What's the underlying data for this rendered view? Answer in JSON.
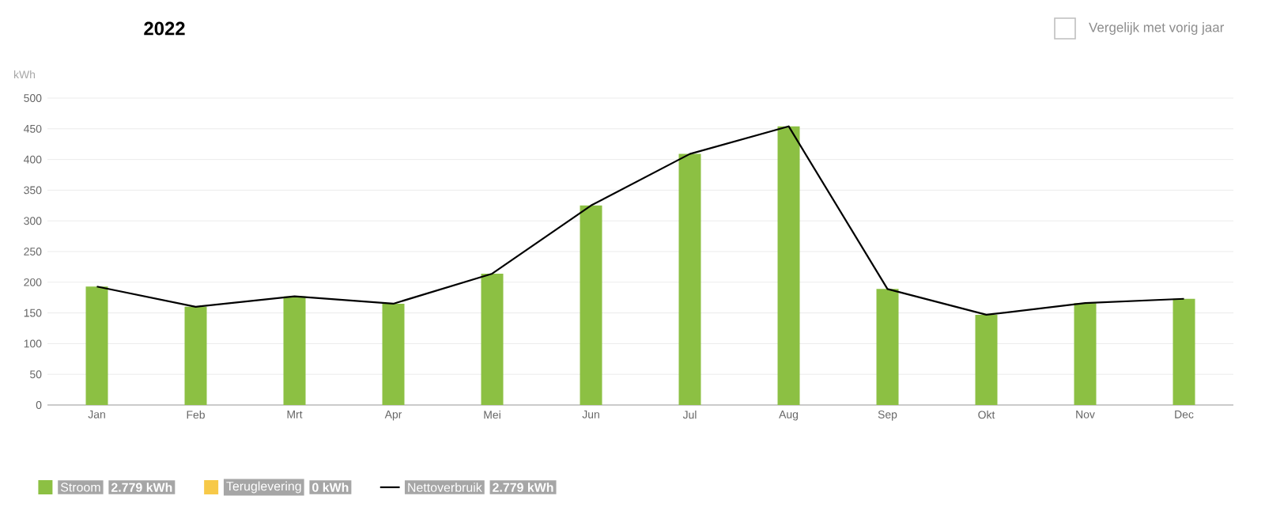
{
  "chart_data": {
    "type": "bar",
    "title": "2022",
    "ylabel": "kWh",
    "categories": [
      "Jan",
      "Feb",
      "Mrt",
      "Apr",
      "Mei",
      "Jun",
      "Jul",
      "Aug",
      "Sep",
      "Okt",
      "Nov",
      "Dec"
    ],
    "series": [
      {
        "name": "Stroom",
        "color": "#8cc043",
        "values": [
          193,
          160,
          177,
          165,
          214,
          325,
          409,
          454,
          189,
          147,
          166,
          173
        ]
      },
      {
        "name": "Teruglevering",
        "color": "#f7c948",
        "values": [
          0,
          0,
          0,
          0,
          0,
          0,
          0,
          0,
          0,
          0,
          0,
          0
        ]
      },
      {
        "name": "Nettoverbruik",
        "type": "line",
        "color": "#000000",
        "values": [
          193,
          160,
          177,
          165,
          214,
          325,
          409,
          454,
          189,
          147,
          166,
          173
        ]
      }
    ],
    "annotations": [
      "2.779 kWh",
      "0 kWh",
      "2.779 kWh",
      "Vergelijk met vorig jaar"
    ],
    "ylim": [
      0,
      500
    ],
    "yticks": [
      0,
      50,
      100,
      150,
      200,
      250,
      300,
      350,
      400,
      450,
      500
    ],
    "grid": "y",
    "legend": "bottom",
    "marker": "none",
    "line_style": "solid"
  }
}
